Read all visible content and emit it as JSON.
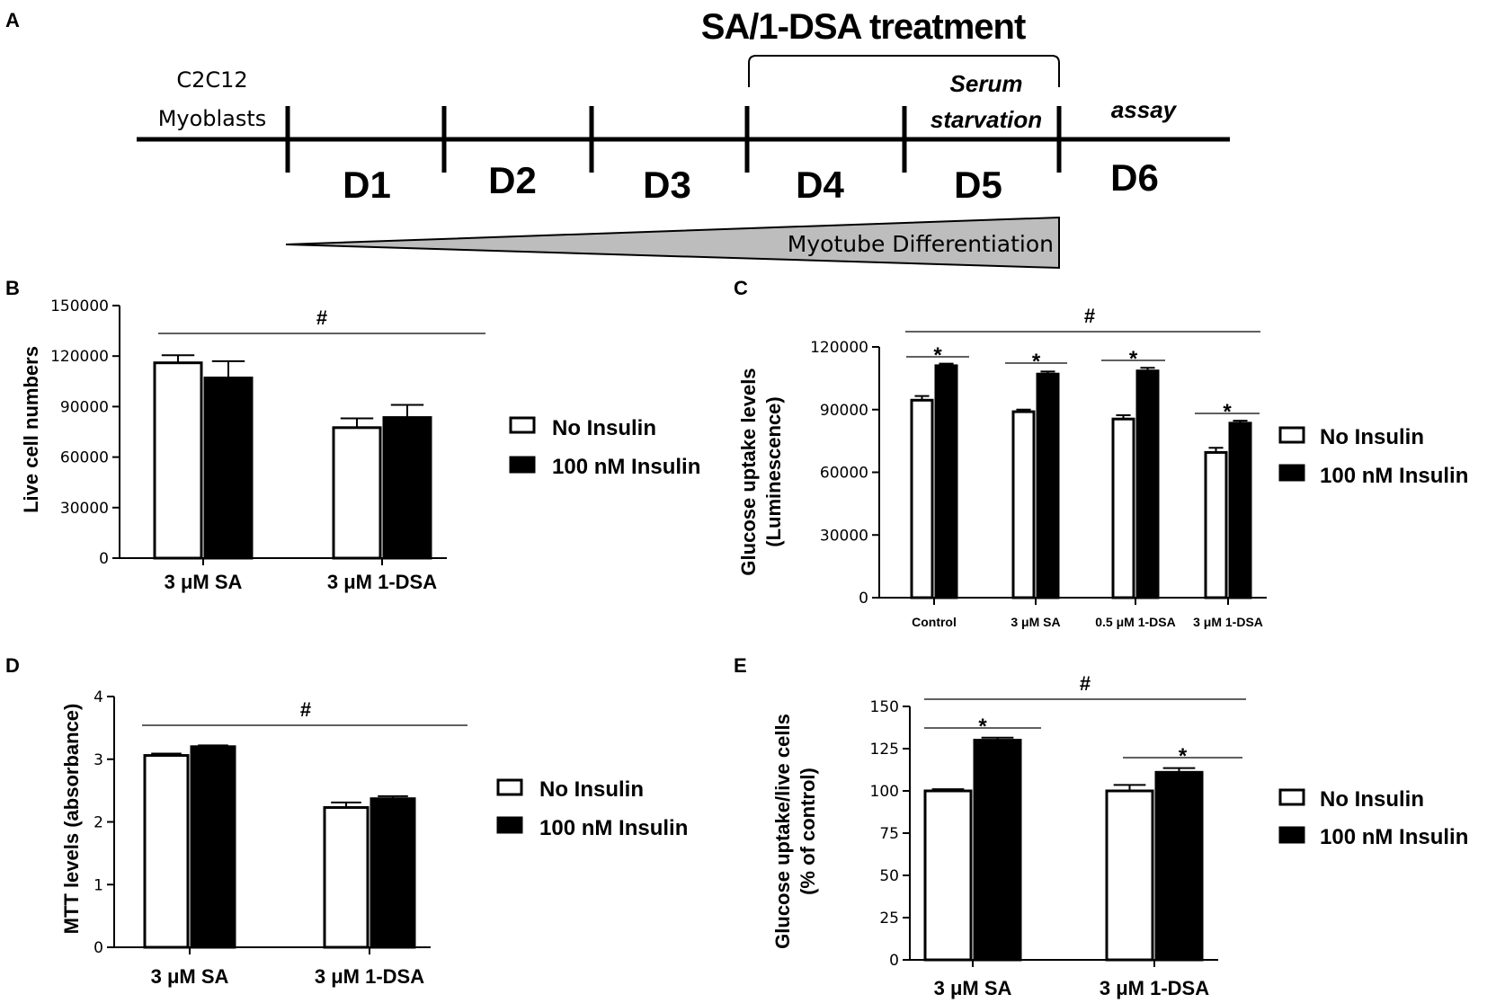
{
  "panel_labels": [
    "A",
    "B",
    "C",
    "D",
    "E"
  ],
  "timeline": {
    "treatment_title": "SA/1-DSA treatment",
    "start_label": [
      "C2C12",
      "Myoblasts"
    ],
    "serum_label": [
      "Serum",
      "starvation"
    ],
    "assay_label": "assay",
    "days": [
      "D1",
      "D2",
      "D3",
      "D4",
      "D5",
      "D6"
    ],
    "differentiation_label": "Myotube Differentiation"
  },
  "legend": {
    "no_insulin": "No Insulin",
    "insulin": "100 nM Insulin",
    "colors": {
      "no_insulin": "#ffffff",
      "insulin": "#000000"
    }
  },
  "chart_data": [
    {
      "panel": "B",
      "type": "bar",
      "ylabel": "Live cell numbers",
      "categories": [
        "3 μM SA",
        "3 μM 1-DSA"
      ],
      "ylim": [
        0,
        150000
      ],
      "ticks": [
        0,
        30000,
        60000,
        90000,
        120000,
        150000
      ],
      "tick_labels": [
        "0",
        "30000",
        "60000",
        "90000",
        "120000",
        "150000"
      ],
      "series": [
        {
          "name": "No Insulin",
          "values": [
            116000,
            77500
          ],
          "errors": [
            4500,
            5500
          ]
        },
        {
          "name": "100 nM Insulin",
          "values": [
            107000,
            83500
          ],
          "errors": [
            10000,
            7500
          ]
        }
      ],
      "annotations": [
        {
          "text": "#",
          "between": [
            "3 μM SA",
            "3 μM 1-DSA"
          ]
        }
      ]
    },
    {
      "panel": "C",
      "type": "bar",
      "ylabel": [
        "Glucose uptake levels",
        "(Luminescence)"
      ],
      "categories": [
        "Control",
        "3 μM SA",
        "0.5 μM 1-DSA",
        "3 μM 1-DSA"
      ],
      "ylim": [
        0,
        120000
      ],
      "ticks": [
        0,
        30000,
        60000,
        90000,
        120000
      ],
      "tick_labels": [
        "0",
        "30000",
        "60000",
        "90000",
        "120000"
      ],
      "series": [
        {
          "name": "No Insulin",
          "values": [
            94500,
            89000,
            85500,
            69500
          ],
          "errors": [
            2000,
            1000,
            1800,
            2200
          ]
        },
        {
          "name": "100 nM Insulin",
          "values": [
            111000,
            107000,
            108500,
            83500
          ],
          "errors": [
            1000,
            1200,
            1500,
            1200
          ]
        }
      ],
      "annotations": [
        {
          "text": "*",
          "scope": "each category"
        },
        {
          "text": "#",
          "between": [
            "Control",
            "3 μM 1-DSA"
          ]
        }
      ]
    },
    {
      "panel": "D",
      "type": "bar",
      "ylabel": "MTT levels (absorbance)",
      "categories": [
        "3 μM SA",
        "3 μM 1-DSA"
      ],
      "ylim": [
        0,
        4
      ],
      "ticks": [
        0,
        1,
        2,
        3,
        4
      ],
      "tick_labels": [
        "0",
        "1",
        "2",
        "3",
        "4"
      ],
      "series": [
        {
          "name": "No Insulin",
          "values": [
            3.06,
            2.23
          ],
          "errors": [
            0.03,
            0.08
          ]
        },
        {
          "name": "100 nM Insulin",
          "values": [
            3.2,
            2.37
          ],
          "errors": [
            0.02,
            0.04
          ]
        }
      ],
      "annotations": [
        {
          "text": "#",
          "between": [
            "3 μM SA",
            "3 μM 1-DSA"
          ]
        }
      ]
    },
    {
      "panel": "E",
      "type": "bar",
      "ylabel": [
        "Glucose uptake/live cells",
        "(% of control)"
      ],
      "categories": [
        "3 μM SA",
        "3 μM 1-DSA"
      ],
      "ylim": [
        0,
        150
      ],
      "ticks": [
        0,
        25,
        50,
        75,
        100,
        125,
        150
      ],
      "tick_labels": [
        "0",
        "25",
        "50",
        "75",
        "100",
        "125",
        "150"
      ],
      "series": [
        {
          "name": "No Insulin",
          "values": [
            100,
            100
          ],
          "errors": [
            1,
            3.5
          ]
        },
        {
          "name": "100 nM Insulin",
          "values": [
            130,
            111
          ],
          "errors": [
            1.5,
            2.5
          ]
        }
      ],
      "annotations": [
        {
          "text": "*",
          "scope": "each category"
        },
        {
          "text": "#",
          "between": [
            "3 μM SA",
            "3 μM 1-DSA"
          ]
        }
      ]
    }
  ]
}
